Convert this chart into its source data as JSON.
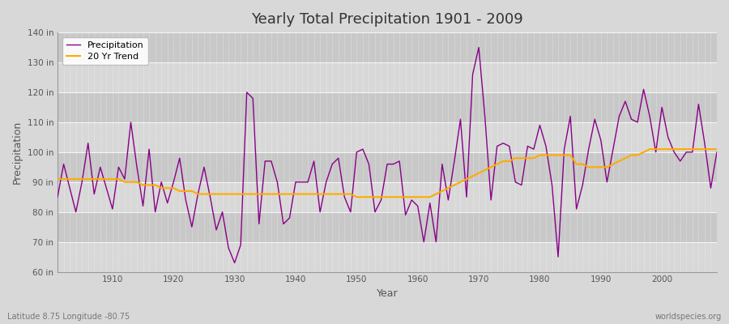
{
  "title": "Yearly Total Precipitation 1901 - 2009",
  "xlabel": "Year",
  "ylabel": "Precipitation",
  "foot_left": "Latitude 8.75 Longitude -80.75",
  "foot_right": "worldspecies.org",
  "ylim": [
    60,
    140
  ],
  "yticks": [
    60,
    70,
    80,
    90,
    100,
    110,
    120,
    130,
    140
  ],
  "ytick_labels": [
    "60 in",
    "70 in",
    "80 in",
    "90 in",
    "100 in",
    "110 in",
    "120 in",
    "130 in",
    "140 in"
  ],
  "xlim": [
    1901,
    2009
  ],
  "bg_color": "#d8d8d8",
  "plot_bg_color": "#d0d0d0",
  "band_light": "#d8d8d8",
  "band_dark": "#c8c8c8",
  "precip_color": "#880088",
  "trend_color": "#ffaa00",
  "legend_labels": [
    "Precipitation",
    "20 Yr Trend"
  ],
  "years": [
    1901,
    1902,
    1903,
    1904,
    1905,
    1906,
    1907,
    1908,
    1909,
    1910,
    1911,
    1912,
    1913,
    1914,
    1915,
    1916,
    1917,
    1918,
    1919,
    1920,
    1921,
    1922,
    1923,
    1924,
    1925,
    1926,
    1927,
    1928,
    1929,
    1930,
    1931,
    1932,
    1933,
    1934,
    1935,
    1936,
    1937,
    1938,
    1939,
    1940,
    1941,
    1942,
    1943,
    1944,
    1945,
    1946,
    1947,
    1948,
    1949,
    1950,
    1951,
    1952,
    1953,
    1954,
    1955,
    1956,
    1957,
    1958,
    1959,
    1960,
    1961,
    1962,
    1963,
    1964,
    1965,
    1966,
    1967,
    1968,
    1969,
    1970,
    1971,
    1972,
    1973,
    1974,
    1975,
    1976,
    1977,
    1978,
    1979,
    1980,
    1981,
    1982,
    1983,
    1984,
    1985,
    1986,
    1987,
    1988,
    1989,
    1990,
    1991,
    1992,
    1993,
    1994,
    1995,
    1996,
    1997,
    1998,
    1999,
    2000,
    2001,
    2002,
    2003,
    2004,
    2005,
    2006,
    2007,
    2008,
    2009
  ],
  "precip": [
    85,
    96,
    88,
    80,
    90,
    103,
    86,
    95,
    88,
    81,
    95,
    91,
    110,
    95,
    82,
    101,
    80,
    90,
    83,
    90,
    98,
    84,
    75,
    86,
    95,
    85,
    74,
    80,
    68,
    63,
    69,
    120,
    118,
    76,
    97,
    97,
    90,
    76,
    78,
    90,
    90,
    90,
    97,
    80,
    90,
    96,
    98,
    85,
    80,
    100,
    101,
    96,
    80,
    84,
    96,
    96,
    97,
    79,
    84,
    82,
    70,
    83,
    70,
    96,
    84,
    97,
    111,
    85,
    126,
    135,
    112,
    84,
    102,
    103,
    102,
    90,
    89,
    102,
    101,
    109,
    102,
    89,
    65,
    101,
    112,
    81,
    89,
    101,
    111,
    104,
    90,
    101,
    112,
    117,
    111,
    110,
    121,
    112,
    100,
    115,
    105,
    100,
    97,
    100,
    100,
    116,
    103,
    88,
    100
  ],
  "trend": [
    91,
    91,
    91,
    91,
    91,
    91,
    91,
    91,
    91,
    91,
    91,
    90,
    90,
    90,
    89,
    89,
    89,
    88,
    88,
    88,
    87,
    87,
    87,
    86,
    86,
    86,
    86,
    86,
    86,
    86,
    86,
    86,
    86,
    86,
    86,
    86,
    86,
    86,
    86,
    86,
    86,
    86,
    86,
    86,
    86,
    86,
    86,
    86,
    86,
    85,
    85,
    85,
    85,
    85,
    85,
    85,
    85,
    85,
    85,
    85,
    85,
    85,
    86,
    87,
    88,
    89,
    90,
    91,
    92,
    93,
    94,
    95,
    96,
    97,
    97,
    98,
    98,
    98,
    98,
    99,
    99,
    99,
    99,
    99,
    99,
    96,
    96,
    95,
    95,
    95,
    95,
    96,
    97,
    98,
    99,
    99,
    100,
    101,
    101,
    101,
    101,
    101,
    101,
    101,
    101,
    101,
    101,
    101,
    101
  ]
}
